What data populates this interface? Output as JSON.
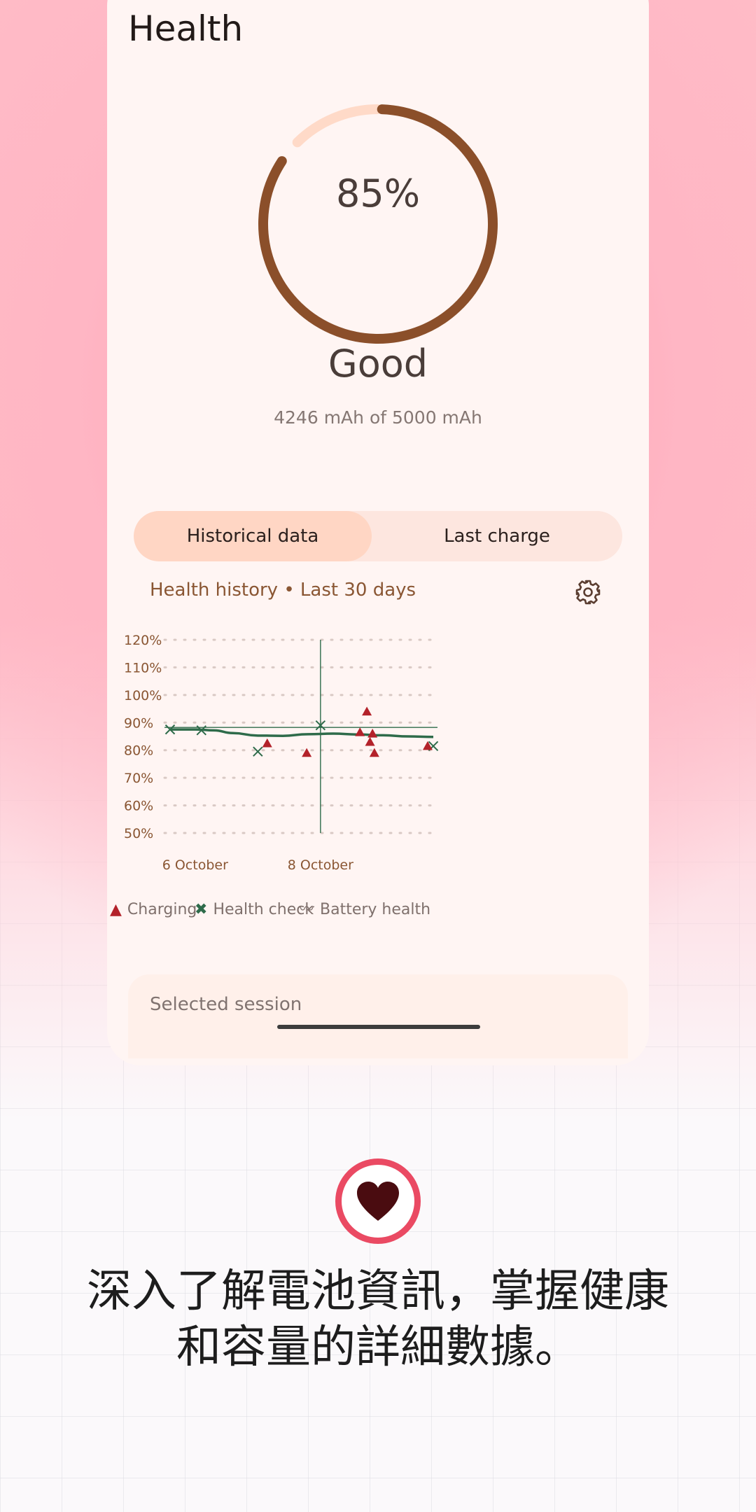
{
  "app": {
    "page_title": "Health",
    "health_percent": "85%",
    "health_fraction": 0.85,
    "status": "Good",
    "capacity_text": "4246 mAh of 5000 mAh"
  },
  "tabs": [
    {
      "label": "Historical data",
      "selected": true
    },
    {
      "label": "Last charge",
      "selected": false
    }
  ],
  "chart_title": "Health history • Last 30 days",
  "legend": {
    "charging": "Charging",
    "health_check": "Health check",
    "battery_health": "Battery health"
  },
  "session_label": "Selected session",
  "caption_lines": [
    "深入了解電池資訊，掌握健康",
    "和容量的詳細數據。"
  ],
  "colors": {
    "ring": "#8b4f2a",
    "ring_track": "#ffdac8",
    "charging": "#b3222a",
    "health_check": "#2e6b4a",
    "battery_health": "#2e6b4a",
    "accent_pink": "#ea4a63"
  },
  "icons": {
    "settings": "gear-icon",
    "badge": "heart-icon"
  },
  "chart_data": {
    "type": "scatter",
    "y_ticks": [
      "120%",
      "110%",
      "100%",
      "90%",
      "80%",
      "70%",
      "60%",
      "50%"
    ],
    "ylim": [
      50,
      120
    ],
    "x_ticks": [
      {
        "label": "6 October",
        "day": 6
      },
      {
        "label": "8 October",
        "day": 8
      }
    ],
    "xlim": [
      5.5,
      9.9
    ],
    "grid": true,
    "cursor_x": 8.0,
    "cursor_y": 89,
    "series": [
      {
        "name": "Battery health",
        "kind": "line",
        "x": [
          5.6,
          6.0,
          6.3,
          6.6,
          7.0,
          7.4,
          7.8,
          8.2,
          8.6,
          9.0,
          9.4,
          9.8
        ],
        "y": [
          87.5,
          87.5,
          87.2,
          86.2,
          85.3,
          85.2,
          85.8,
          86.0,
          85.7,
          85.4,
          85.0,
          84.8
        ]
      },
      {
        "name": "Health check",
        "kind": "x-marker",
        "x": [
          5.6,
          6.1,
          7.0,
          8.0,
          9.8
        ],
        "y": [
          87.5,
          87.2,
          79.5,
          89,
          81.5
        ]
      },
      {
        "name": "Charging",
        "kind": "triangle",
        "x": [
          7.15,
          7.78,
          8.63,
          8.74,
          8.79,
          8.83,
          8.86,
          9.71
        ],
        "y": [
          82.5,
          79,
          86.5,
          94,
          83,
          86,
          79,
          81.5
        ]
      }
    ]
  }
}
